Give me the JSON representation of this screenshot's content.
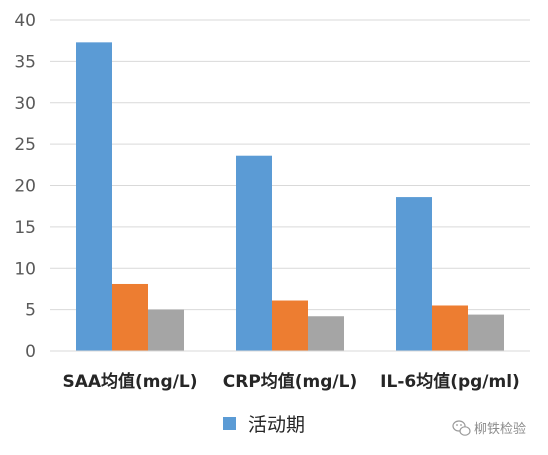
{
  "chart_data": {
    "type": "bar",
    "categories": [
      "SAA均值(mg/L)",
      "CRP均值(mg/L)",
      "IL-6均值(pg/ml)"
    ],
    "series": [
      {
        "name": "活动期",
        "color": "#5b9bd5",
        "values": [
          37.3,
          23.6,
          18.6
        ]
      },
      {
        "name": "",
        "color": "#ed7d31",
        "values": [
          8.1,
          6.1,
          5.5
        ]
      },
      {
        "name": "",
        "color": "#a5a5a5",
        "values": [
          5.0,
          4.2,
          4.4
        ]
      }
    ],
    "ylim": [
      0,
      40
    ],
    "yticks": [
      "0",
      "5",
      "10",
      "15",
      "20",
      "25",
      "30",
      "35",
      "40"
    ],
    "grid": true,
    "legend": {
      "position": "bottom",
      "entries": [
        "活动期"
      ]
    }
  },
  "watermark": {
    "text": "柳铁检验",
    "icon": "wechat-icon"
  }
}
